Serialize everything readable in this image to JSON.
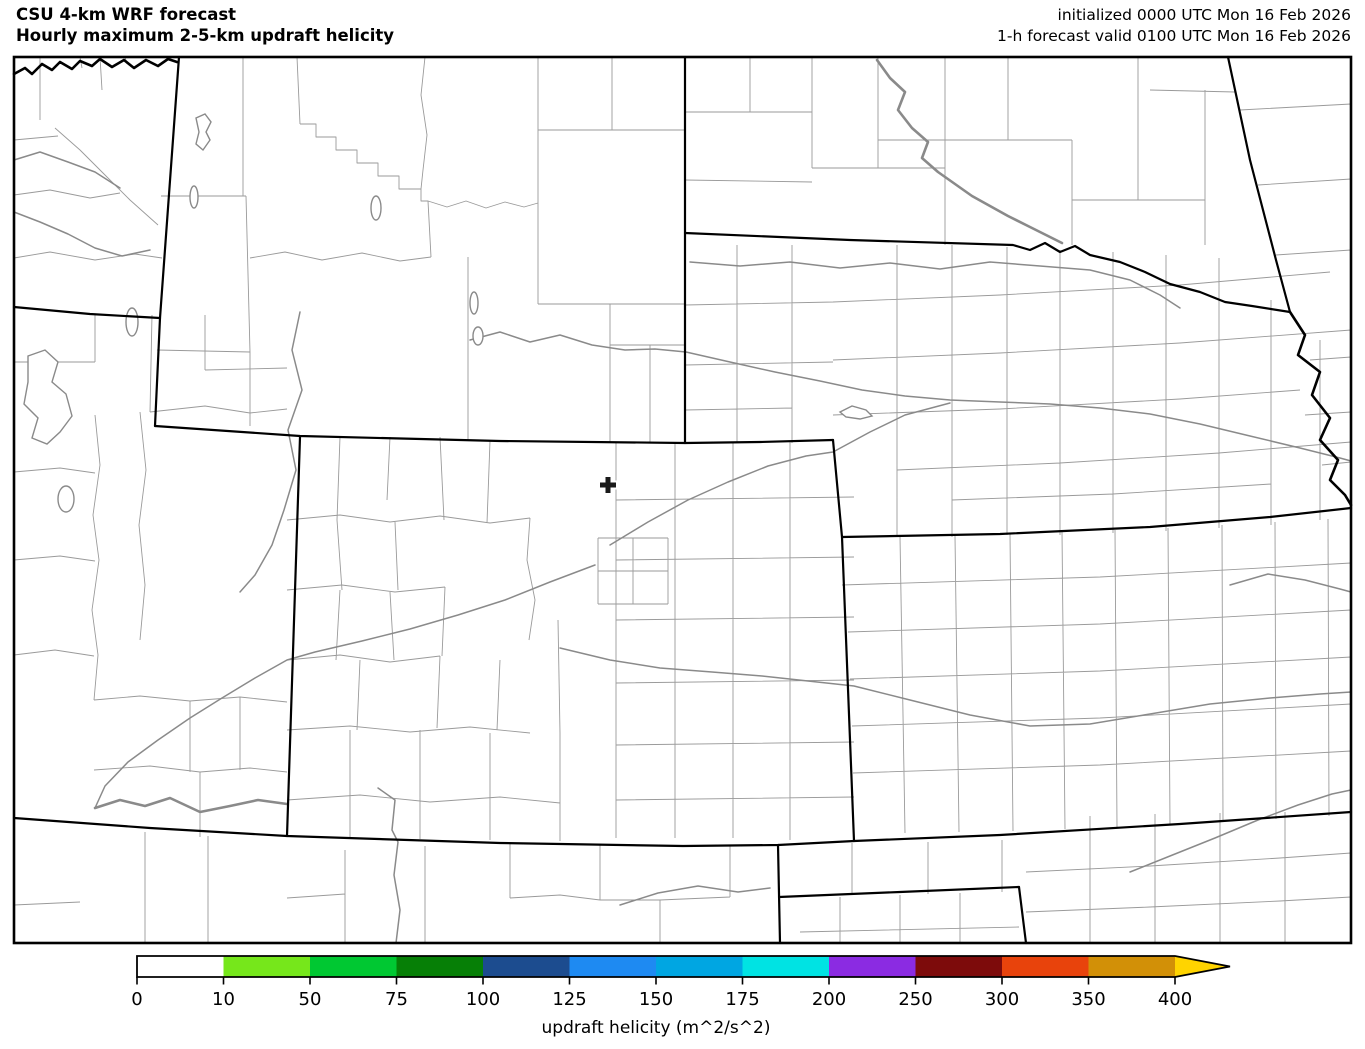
{
  "header": {
    "title_line1": "CSU 4-km WRF forecast",
    "title_line2": "Hourly maximum 2-5-km updraft helicity",
    "init_line": "initialized 0000 UTC Mon 16 Feb 2026",
    "valid_line": "1-h forecast valid 0100 UTC Mon 16 Feb 2026"
  },
  "colorbar": {
    "label": "updraft helicity (m^2/s^2)",
    "tick_labels": [
      "0",
      "10",
      "50",
      "75",
      "100",
      "125",
      "150",
      "175",
      "200",
      "250",
      "300",
      "350",
      "400"
    ],
    "segment_colors": [
      "#ffffff",
      "#76e71b",
      "#00c832",
      "#067f06",
      "#1c4c8f",
      "#1e8af2",
      "#00a6e2",
      "#00e3e3",
      "#8b2be2",
      "#7d0b0b",
      "#e8430c",
      "#d29007"
    ],
    "arrow_color": "#ffd400",
    "outline_color": "#000000"
  },
  "map": {
    "marker_symbol": "+",
    "marker_color": "#1a1a1a",
    "county_line_color": "#9a9a9a",
    "state_line_color": "#000000",
    "background_color": "#ffffff"
  }
}
